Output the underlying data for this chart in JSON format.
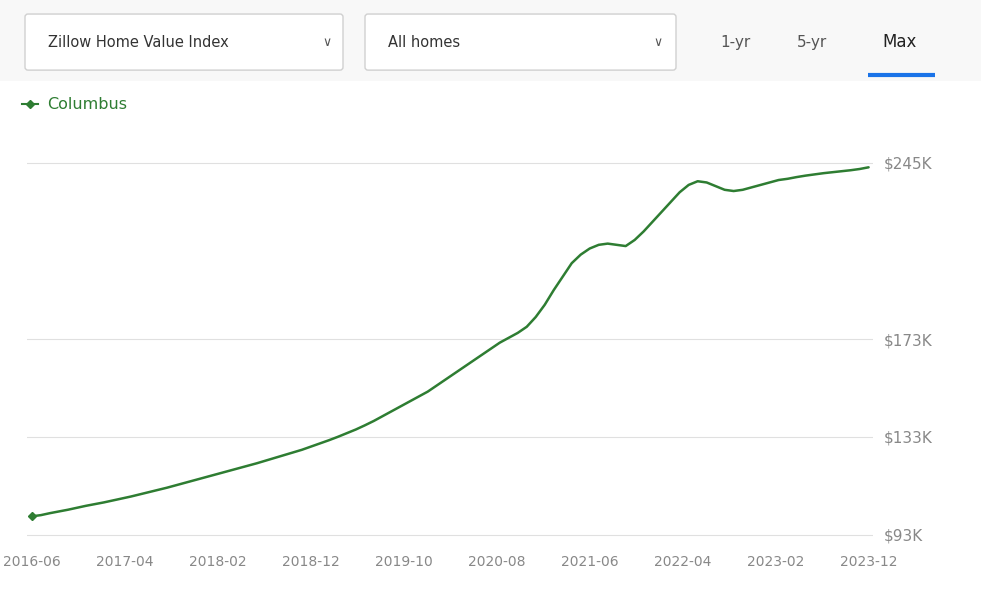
{
  "line_color": "#2e7d32",
  "background_color": "#ffffff",
  "grid_color": "#e0e0e0",
  "y_ticks": [
    93000,
    133000,
    173000,
    245000
  ],
  "y_tick_labels": [
    "$93K",
    "$133K",
    "$173K",
    "$245K"
  ],
  "x_tick_labels": [
    "2016-06",
    "2017-04",
    "2018-02",
    "2018-12",
    "2019-10",
    "2020-08",
    "2021-06",
    "2022-04",
    "2023-02",
    "2023-12"
  ],
  "legend_label": "Columbus",
  "dropdown1_text": "Zillow Home Value Index",
  "dropdown2_text": "All homes",
  "btn1": "1-yr",
  "btn2": "5-yr",
  "btn3": "Max",
  "btn3_underline_color": "#1a73e8",
  "data_x": [
    0,
    1,
    2,
    3,
    4,
    5,
    6,
    7,
    8,
    9,
    10,
    11,
    12,
    13,
    14,
    15,
    16,
    17,
    18,
    19,
    20,
    21,
    22,
    23,
    24,
    25,
    26,
    27,
    28,
    29,
    30,
    31,
    32,
    33,
    34,
    35,
    36,
    37,
    38,
    39,
    40,
    41,
    42,
    43,
    44,
    45,
    46,
    47,
    48,
    49,
    50,
    51,
    52,
    53,
    54,
    55,
    56,
    57,
    58,
    59,
    60,
    61,
    62,
    63,
    64,
    65,
    66,
    67,
    68,
    69,
    70,
    71,
    72,
    73,
    74,
    75,
    76,
    77,
    78,
    79,
    80,
    81,
    82,
    83,
    84,
    85,
    86,
    87,
    88,
    89,
    90,
    91,
    92,
    93
  ],
  "data_y": [
    100500,
    101000,
    101800,
    102500,
    103200,
    104000,
    104800,
    105500,
    106200,
    107000,
    107800,
    108600,
    109500,
    110400,
    111300,
    112200,
    113200,
    114200,
    115200,
    116200,
    117200,
    118200,
    119200,
    120200,
    121200,
    122200,
    123300,
    124400,
    125500,
    126600,
    127700,
    129000,
    130300,
    131600,
    133000,
    134500,
    136000,
    137700,
    139500,
    141500,
    143500,
    145500,
    147500,
    149500,
    151500,
    154000,
    156500,
    159000,
    161500,
    164000,
    166500,
    169000,
    171500,
    173500,
    175500,
    178000,
    182000,
    187000,
    193000,
    198500,
    204000,
    207500,
    210000,
    211500,
    212000,
    211500,
    211000,
    213500,
    217000,
    221000,
    225000,
    229000,
    233000,
    236000,
    237500,
    237000,
    235500,
    234000,
    233500,
    234000,
    235000,
    236000,
    237000,
    238000,
    238500,
    239200,
    239800,
    240300,
    240800,
    241200,
    241600,
    242000,
    242500,
    243200
  ],
  "ylim": [
    88000,
    260000
  ],
  "xlim": [
    -0.5,
    93.5
  ]
}
